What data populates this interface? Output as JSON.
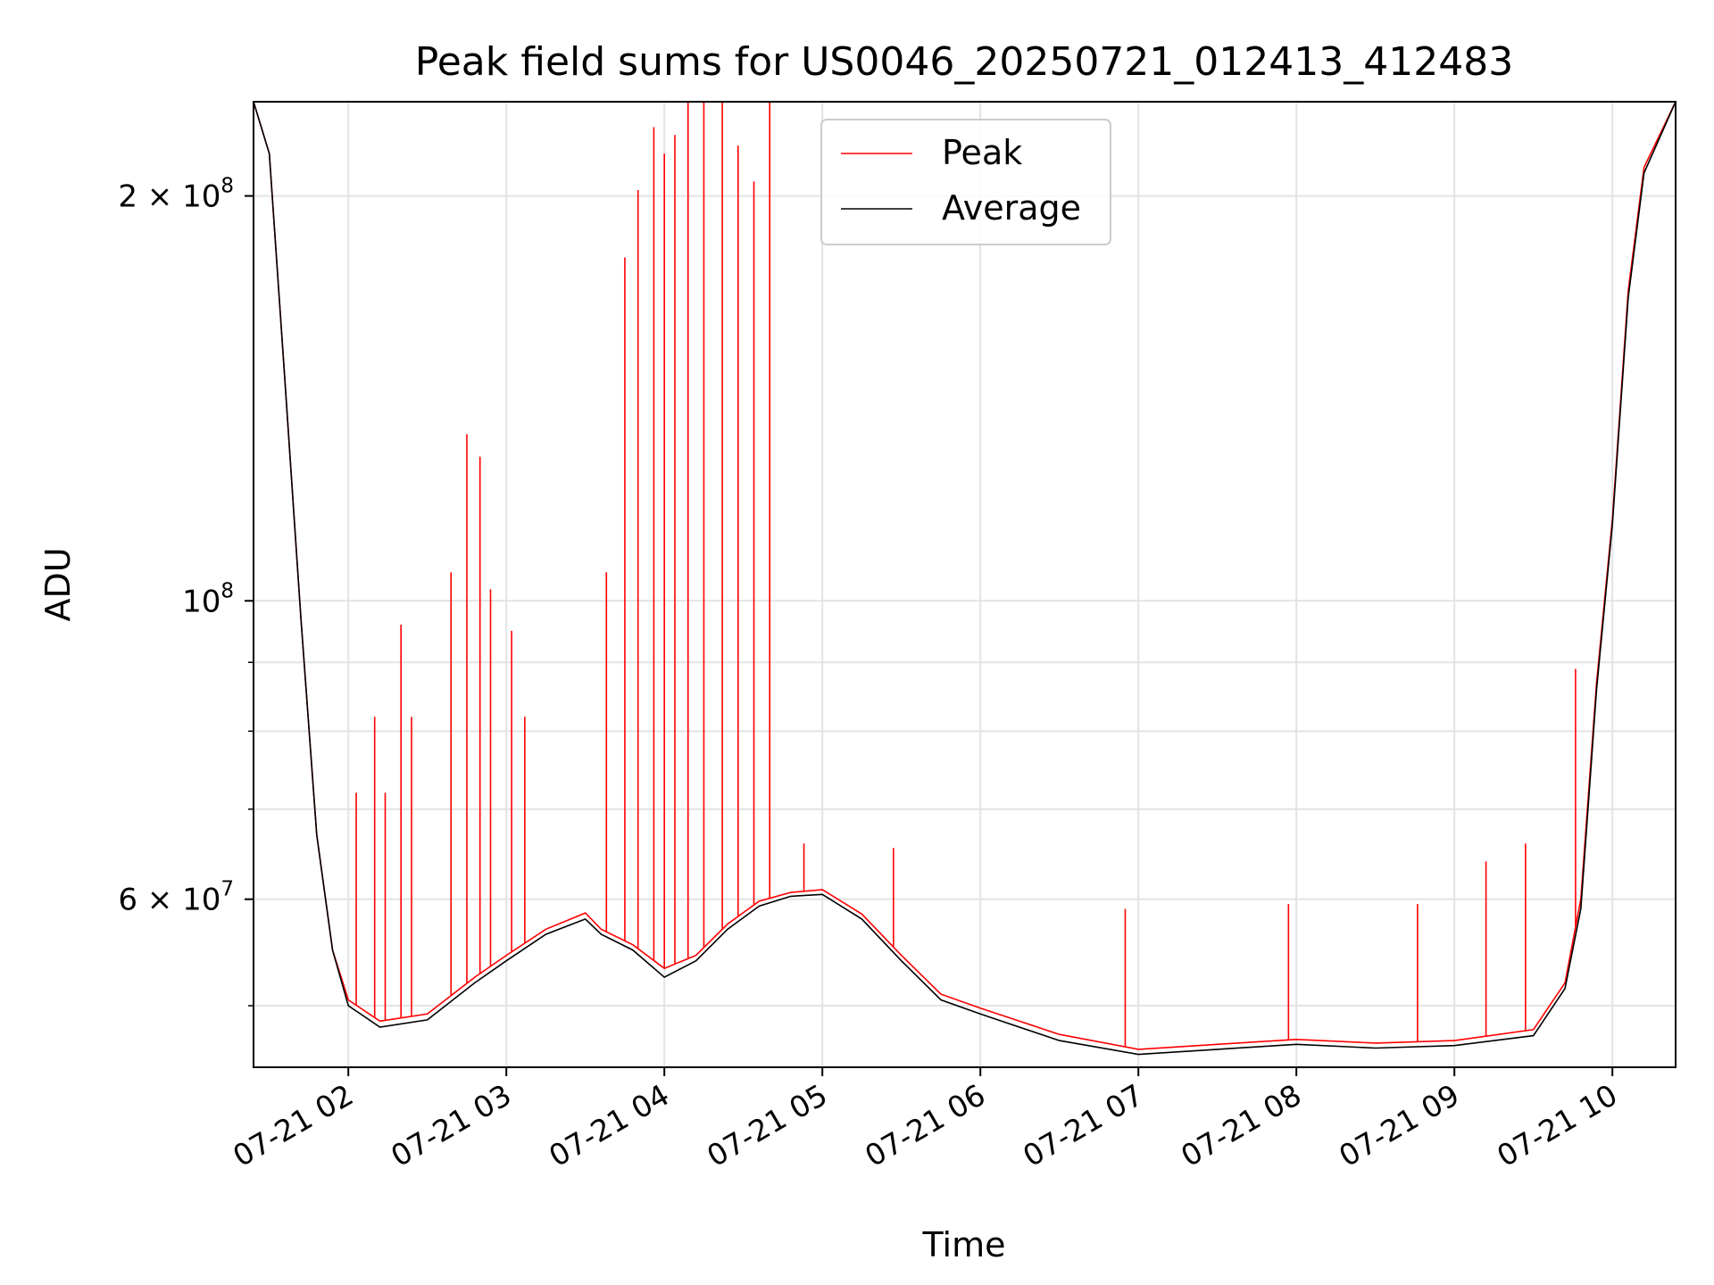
{
  "chart_data": {
    "type": "line",
    "title": "Peak field sums for US0046_20250721_012413_412483",
    "xlabel": "Time",
    "ylabel": "ADU",
    "yscale": "log",
    "xlim": [
      "07-21 01:24",
      "07-21 10:24"
    ],
    "ylim": [
      45000000,
      235000000
    ],
    "grid": true,
    "legend_position": "upper center",
    "x_ticks": [
      "07-21 02",
      "07-21 03",
      "07-21 04",
      "07-21 05",
      "07-21 06",
      "07-21 07",
      "07-21 08",
      "07-21 09",
      "07-21 10"
    ],
    "y_tick_labels": [
      {
        "value": 200000000,
        "base": "2 × 10",
        "exp": "8"
      },
      {
        "value": 100000000,
        "base": "10",
        "exp": "8"
      },
      {
        "value": 60000000,
        "base": "6 × 10",
        "exp": "7"
      }
    ],
    "series": [
      {
        "name": "Peak",
        "color": "#ff0000",
        "baseline": [
          [
            "07-21 01:24",
            235000000
          ],
          [
            "07-21 01:30",
            215000000
          ],
          [
            "07-21 01:36",
            145000000
          ],
          [
            "07-21 01:42",
            97000000
          ],
          [
            "07-21 01:48",
            67000000
          ],
          [
            "07-21 01:54",
            55000000
          ],
          [
            "07-21 02:00",
            50500000
          ],
          [
            "07-21 02:12",
            48700000
          ],
          [
            "07-21 02:30",
            49300000
          ],
          [
            "07-21 02:48",
            52500000
          ],
          [
            "07-21 03:00",
            54500000
          ],
          [
            "07-21 03:15",
            57000000
          ],
          [
            "07-21 03:30",
            58600000
          ],
          [
            "07-21 03:36",
            57000000
          ],
          [
            "07-21 03:48",
            55500000
          ],
          [
            "07-21 04:00",
            53300000
          ],
          [
            "07-21 04:12",
            54500000
          ],
          [
            "07-21 04:24",
            57500000
          ],
          [
            "07-21 04:36",
            59800000
          ],
          [
            "07-21 04:48",
            60700000
          ],
          [
            "07-21 05:00",
            61000000
          ],
          [
            "07-21 05:15",
            58500000
          ],
          [
            "07-21 05:30",
            54500000
          ],
          [
            "07-21 05:45",
            51000000
          ],
          [
            "07-21 06:00",
            49800000
          ],
          [
            "07-21 06:30",
            47600000
          ],
          [
            "07-21 07:00",
            46400000
          ],
          [
            "07-21 07:30",
            46800000
          ],
          [
            "07-21 08:00",
            47200000
          ],
          [
            "07-21 08:30",
            46900000
          ],
          [
            "07-21 09:00",
            47100000
          ],
          [
            "07-21 09:30",
            48000000
          ],
          [
            "07-21 09:42",
            52000000
          ],
          [
            "07-21 09:48",
            60000000
          ],
          [
            "07-21 09:54",
            87000000
          ],
          [
            "07-21 10:00",
            115000000
          ],
          [
            "07-21 10:06",
            170000000
          ],
          [
            "07-21 10:12",
            210000000
          ],
          [
            "07-21 10:24",
            235000000
          ]
        ],
        "spikes": [
          [
            "07-21 02:03",
            72000000
          ],
          [
            "07-21 02:10",
            82000000
          ],
          [
            "07-21 02:14",
            72000000
          ],
          [
            "07-21 02:20",
            96000000
          ],
          [
            "07-21 02:24",
            82000000
          ],
          [
            "07-21 02:39",
            105000000
          ],
          [
            "07-21 02:45",
            133000000
          ],
          [
            "07-21 02:50",
            128000000
          ],
          [
            "07-21 02:54",
            102000000
          ],
          [
            "07-21 03:02",
            95000000
          ],
          [
            "07-21 03:07",
            82000000
          ],
          [
            "07-21 03:38",
            105000000
          ],
          [
            "07-21 03:45",
            180000000
          ],
          [
            "07-21 03:50",
            202000000
          ],
          [
            "07-21 03:56",
            225000000
          ],
          [
            "07-21 04:00",
            215000000
          ],
          [
            "07-21 04:04",
            222000000
          ],
          [
            "07-21 04:09",
            235000000
          ],
          [
            "07-21 04:15",
            235000000
          ],
          [
            "07-21 04:22",
            235000000
          ],
          [
            "07-21 04:28",
            218000000
          ],
          [
            "07-21 04:34",
            205000000
          ],
          [
            "07-21 04:40",
            235000000
          ],
          [
            "07-21 04:53",
            66000000
          ],
          [
            "07-21 05:27",
            65500000
          ],
          [
            "07-21 06:55",
            59000000
          ],
          [
            "07-21 07:57",
            59500000
          ],
          [
            "07-21 08:46",
            59500000
          ],
          [
            "07-21 09:12",
            64000000
          ],
          [
            "07-21 09:27",
            66000000
          ],
          [
            "07-21 09:46",
            89000000
          ]
        ]
      },
      {
        "name": "Average",
        "color": "#000000",
        "values": [
          [
            "07-21 01:24",
            235000000
          ],
          [
            "07-21 01:30",
            215000000
          ],
          [
            "07-21 01:36",
            145000000
          ],
          [
            "07-21 01:42",
            97000000
          ],
          [
            "07-21 01:48",
            67000000
          ],
          [
            "07-21 01:54",
            55000000
          ],
          [
            "07-21 02:00",
            50000000
          ],
          [
            "07-21 02:12",
            48200000
          ],
          [
            "07-21 02:30",
            48800000
          ],
          [
            "07-21 02:48",
            52000000
          ],
          [
            "07-21 03:00",
            54000000
          ],
          [
            "07-21 03:15",
            56500000
          ],
          [
            "07-21 03:30",
            58000000
          ],
          [
            "07-21 03:36",
            56500000
          ],
          [
            "07-21 03:48",
            55000000
          ],
          [
            "07-21 04:00",
            52500000
          ],
          [
            "07-21 04:12",
            54000000
          ],
          [
            "07-21 04:24",
            57000000
          ],
          [
            "07-21 04:36",
            59300000
          ],
          [
            "07-21 04:48",
            60300000
          ],
          [
            "07-21 05:00",
            60500000
          ],
          [
            "07-21 05:15",
            58000000
          ],
          [
            "07-21 05:30",
            54000000
          ],
          [
            "07-21 05:45",
            50500000
          ],
          [
            "07-21 06:00",
            49300000
          ],
          [
            "07-21 06:30",
            47100000
          ],
          [
            "07-21 07:00",
            46000000
          ],
          [
            "07-21 07:30",
            46400000
          ],
          [
            "07-21 08:00",
            46800000
          ],
          [
            "07-21 08:30",
            46500000
          ],
          [
            "07-21 09:00",
            46700000
          ],
          [
            "07-21 09:30",
            47500000
          ],
          [
            "07-21 09:42",
            51500000
          ],
          [
            "07-21 09:48",
            59000000
          ],
          [
            "07-21 09:54",
            86000000
          ],
          [
            "07-21 10:00",
            114000000
          ],
          [
            "07-21 10:06",
            168000000
          ],
          [
            "07-21 10:12",
            208000000
          ],
          [
            "07-21 10:24",
            235000000
          ]
        ]
      }
    ]
  }
}
